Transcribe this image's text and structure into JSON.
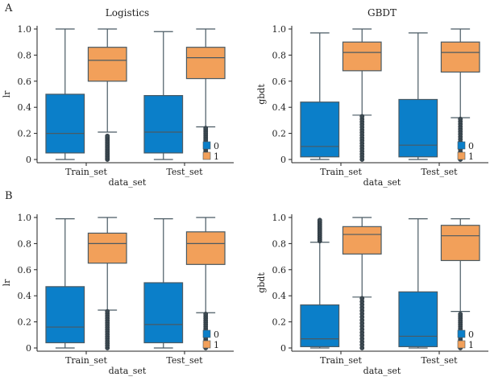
{
  "figure": {
    "panel_labels": [
      "A",
      "B"
    ]
  },
  "chart_data": [
    {
      "type": "box",
      "title": "Logistics",
      "xlabel": "data_set",
      "ylabel": "lr",
      "ylim": [
        0,
        1
      ],
      "yticks": [
        "0",
        "0.2",
        "0.4",
        "0.6",
        "0.8",
        "1.0"
      ],
      "categories": [
        "Train_set",
        "Test_set"
      ],
      "legend": {
        "position": "bottom-right",
        "entries": [
          "0",
          "1"
        ]
      },
      "series": [
        {
          "name": "0",
          "color": "#0b7fc9",
          "boxes": [
            {
              "whislo": 0.0,
              "q1": 0.05,
              "med": 0.2,
              "q3": 0.5,
              "whishi": 1.0,
              "fliers": []
            },
            {
              "whislo": 0.0,
              "q1": 0.05,
              "med": 0.21,
              "q3": 0.49,
              "whishi": 0.98,
              "fliers": []
            }
          ]
        },
        {
          "name": "1",
          "color": "#f2a05a",
          "boxes": [
            {
              "whislo": 0.21,
              "q1": 0.6,
              "med": 0.76,
              "q3": 0.86,
              "whishi": 1.0,
              "fliers": [
                0.0,
                0.18
              ]
            },
            {
              "whislo": 0.25,
              "q1": 0.62,
              "med": 0.78,
              "q3": 0.86,
              "whishi": 1.0,
              "fliers": [
                0.02,
                0.24
              ]
            }
          ]
        }
      ]
    },
    {
      "type": "box",
      "title": "GBDT",
      "xlabel": "data_set",
      "ylabel": "gbdt",
      "ylim": [
        0,
        1
      ],
      "yticks": [
        "0",
        "0.2",
        "0.4",
        "0.6",
        "0.8",
        "1.0"
      ],
      "categories": [
        "Train_set",
        "Test_set"
      ],
      "legend": {
        "position": "bottom-right",
        "entries": [
          "0",
          "1"
        ]
      },
      "series": [
        {
          "name": "0",
          "color": "#0b7fc9",
          "boxes": [
            {
              "whislo": 0.0,
              "q1": 0.02,
              "med": 0.1,
              "q3": 0.44,
              "whishi": 0.97,
              "fliers": []
            },
            {
              "whislo": 0.0,
              "q1": 0.02,
              "med": 0.11,
              "q3": 0.46,
              "whishi": 0.97,
              "fliers": []
            }
          ]
        },
        {
          "name": "1",
          "color": "#f2a05a",
          "boxes": [
            {
              "whislo": 0.34,
              "q1": 0.68,
              "med": 0.82,
              "q3": 0.9,
              "whishi": 1.0,
              "fliers": [
                0.0,
                0.33
              ]
            },
            {
              "whislo": 0.32,
              "q1": 0.67,
              "med": 0.82,
              "q3": 0.9,
              "whishi": 1.0,
              "fliers": [
                0.0,
                0.31
              ]
            }
          ]
        }
      ]
    },
    {
      "type": "box",
      "title": "",
      "xlabel": "data_set",
      "ylabel": "lr",
      "ylim": [
        0,
        1
      ],
      "yticks": [
        "0",
        "0.2",
        "0.4",
        "0.6",
        "0.8",
        "1.0"
      ],
      "categories": [
        "Train_set",
        "Test_set"
      ],
      "legend": {
        "position": "bottom-right",
        "entries": [
          "0",
          "1"
        ]
      },
      "series": [
        {
          "name": "0",
          "color": "#0b7fc9",
          "boxes": [
            {
              "whislo": 0.0,
              "q1": 0.04,
              "med": 0.16,
              "q3": 0.47,
              "whishi": 0.99,
              "fliers": []
            },
            {
              "whislo": 0.0,
              "q1": 0.04,
              "med": 0.18,
              "q3": 0.5,
              "whishi": 0.99,
              "fliers": []
            }
          ]
        },
        {
          "name": "1",
          "color": "#f2a05a",
          "boxes": [
            {
              "whislo": 0.29,
              "q1": 0.65,
              "med": 0.8,
              "q3": 0.88,
              "whishi": 1.0,
              "fliers": [
                0.0,
                0.28
              ]
            },
            {
              "whislo": 0.27,
              "q1": 0.64,
              "med": 0.8,
              "q3": 0.89,
              "whishi": 1.0,
              "fliers": [
                0.0,
                0.26
              ]
            }
          ]
        }
      ]
    },
    {
      "type": "box",
      "title": "",
      "xlabel": "data_set",
      "ylabel": "gbdt",
      "ylim": [
        0,
        1
      ],
      "yticks": [
        "0",
        "0.2",
        "0.4",
        "0.6",
        "0.8",
        "1.0"
      ],
      "categories": [
        "Train_set",
        "Test_set"
      ],
      "legend": {
        "position": "bottom-right",
        "entries": [
          "0",
          "1"
        ]
      },
      "series": [
        {
          "name": "0",
          "color": "#0b7fc9",
          "boxes": [
            {
              "whislo": 0.0,
              "q1": 0.01,
              "med": 0.07,
              "q3": 0.33,
              "whishi": 0.81,
              "fliers": [
                0.82,
                0.98
              ]
            },
            {
              "whislo": 0.0,
              "q1": 0.01,
              "med": 0.09,
              "q3": 0.43,
              "whishi": 0.99,
              "fliers": []
            }
          ]
        },
        {
          "name": "1",
          "color": "#f2a05a",
          "boxes": [
            {
              "whislo": 0.39,
              "q1": 0.72,
              "med": 0.87,
              "q3": 0.93,
              "whishi": 1.0,
              "fliers": [
                0.0,
                0.38
              ]
            },
            {
              "whislo": 0.28,
              "q1": 0.67,
              "med": 0.86,
              "q3": 0.94,
              "whishi": 0.99,
              "fliers": [
                0.0,
                0.26
              ]
            }
          ]
        }
      ]
    }
  ]
}
